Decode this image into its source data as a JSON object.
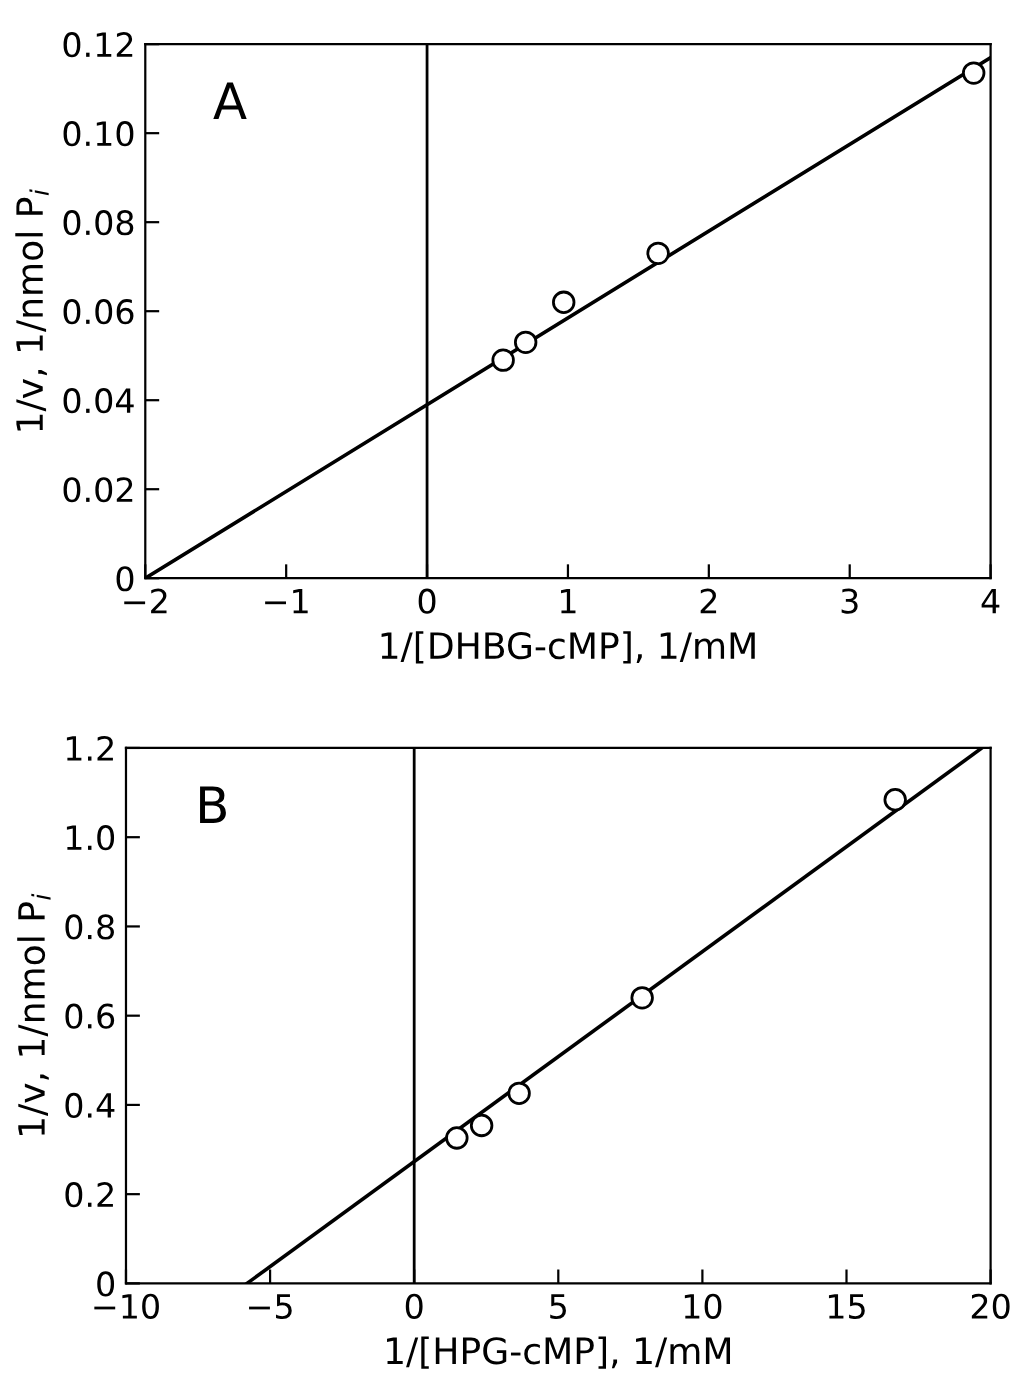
{
  "chart_data": [
    {
      "type": "scatter",
      "xlabel": "1/[DHBG-cMP], 1/mM",
      "ylabel": "1/v, 1/nmol P$_{i}$",
      "annotations": [
        "A"
      ],
      "xlim": [
        -2,
        4
      ],
      "ylim": [
        0,
        0.12
      ],
      "xticks": [
        -2,
        -1,
        0,
        1,
        2,
        3,
        4
      ],
      "yticks": [
        0,
        0.02,
        0.04,
        0.06,
        0.08,
        {
          "value": 0.1,
          "label": "0.10"
        },
        0.12
      ],
      "grid": false,
      "legend": false,
      "ref_lines": [
        {
          "axis": "x",
          "value": 0,
          "color": "#000000"
        }
      ],
      "series": [
        {
          "color": "#000000",
          "marker": "circle",
          "x": [
            0.54,
            0.7,
            0.97,
            1.64,
            3.88
          ],
          "values": [
            0.049,
            0.053,
            0.062,
            0.073,
            0.1135
          ]
        },
        {
          "type": "line",
          "color": "#000000",
          "marker": "none",
          "line_style": "solid",
          "x": [
            -2,
            4
          ],
          "values": [
            0,
            0.117
          ]
        }
      ]
    },
    {
      "type": "scatter",
      "xlabel": "1/[HPG-cMP], 1/mM",
      "ylabel": "1/v, 1/nmol P$_{i}$",
      "annotations": [
        "B"
      ],
      "xlim": [
        -10,
        20
      ],
      "ylim": [
        0,
        1.2
      ],
      "xticks": [
        -10,
        -5,
        0,
        5,
        10,
        15,
        20
      ],
      "yticks": [
        0,
        0.2,
        0.4,
        0.6,
        0.8,
        {
          "value": 1,
          "label": "1.0"
        },
        1.2
      ],
      "grid": false,
      "legend": false,
      "ref_lines": [
        {
          "axis": "x",
          "value": 0,
          "color": "#000000"
        }
      ],
      "series": [
        {
          "color": "#000000",
          "marker": "circle",
          "x": [
            1.48,
            2.34,
            3.64,
            7.91,
            16.69
          ],
          "values": [
            0.326,
            0.354,
            0.426,
            0.64,
            1.084
          ]
        },
        {
          "type": "line",
          "color": "#000000",
          "marker": "none",
          "line_style": "solid",
          "x": [
            -5.8,
            19.7
          ],
          "values": [
            0,
            1.2
          ]
        }
      ]
    }
  ]
}
